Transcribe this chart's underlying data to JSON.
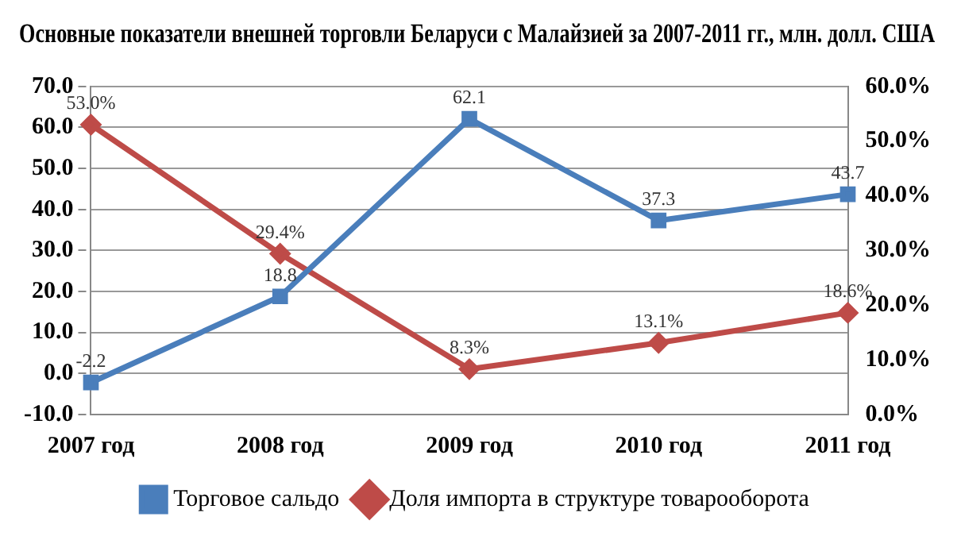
{
  "chart_data": {
    "type": "line",
    "title": "Основные показатели внешней торговли Беларуси с Малайзией за 2007-2011 гг., млн. долл. США",
    "categories": [
      "2007 год",
      "2008 год",
      "2009 год",
      "2010 год",
      "2011 год"
    ],
    "series": [
      {
        "name": "Торговое сальдо",
        "color": "#4a7ebb",
        "marker": "square",
        "values": [
          -2.2,
          18.8,
          62.1,
          37.3,
          43.7
        ],
        "value_labels": [
          "-2.2",
          "18.8",
          "62.1",
          "37.3",
          "43.7"
        ]
      },
      {
        "name": "Доля импорта в структуре товарооборота",
        "color": "#be4b48",
        "marker": "diamond",
        "axis": "y2",
        "values": [
          53.0,
          29.4,
          8.3,
          13.1,
          18.6
        ],
        "value_labels": [
          "53.0%",
          "29.4%",
          "8.3%",
          "13.1%",
          "18.6%"
        ]
      }
    ],
    "ylim": [
      -10,
      70
    ],
    "yticks": [
      {
        "value": -10,
        "label": "-10.0"
      },
      {
        "value": 0,
        "label": "0.0"
      },
      {
        "value": 10,
        "label": "10.0"
      },
      {
        "value": 20,
        "label": "20.0"
      },
      {
        "value": 30,
        "label": "30.0"
      },
      {
        "value": 40,
        "label": "40.0"
      },
      {
        "value": 50,
        "label": "50.0"
      },
      {
        "value": 60,
        "label": "60.0"
      },
      {
        "value": 70,
        "label": "70.0"
      }
    ],
    "y2lim": [
      0,
      60
    ],
    "y2ticks": [
      {
        "value": 0,
        "label": "0.0%"
      },
      {
        "value": 10,
        "label": "10.0%"
      },
      {
        "value": 20,
        "label": "20.0%"
      },
      {
        "value": 30,
        "label": "30.0%"
      },
      {
        "value": 40,
        "label": "40.0%"
      },
      {
        "value": 50,
        "label": "50.0%"
      },
      {
        "value": 60,
        "label": "60.0%"
      }
    ],
    "grid": "y",
    "legend": "bottom",
    "line_style": "solid"
  }
}
